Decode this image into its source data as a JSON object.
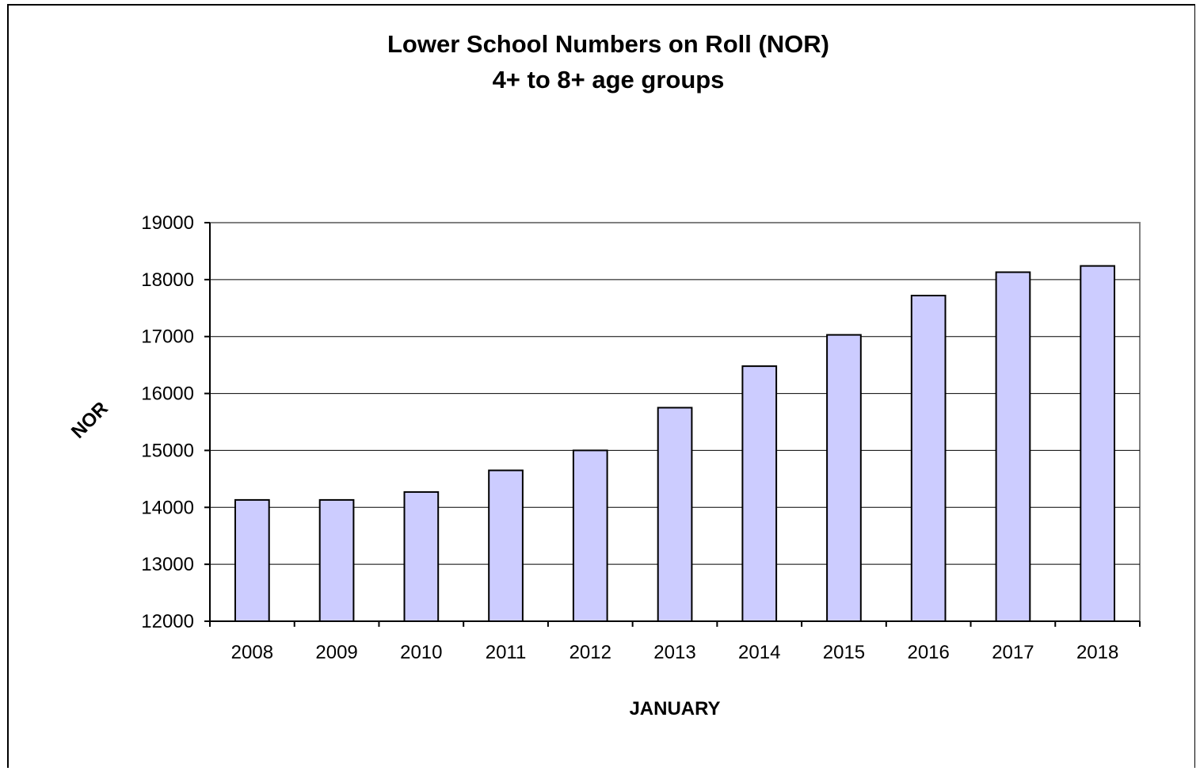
{
  "chart_data": {
    "type": "bar",
    "title": "Lower School Numbers on Roll (NOR)",
    "subtitle": "4+ to 8+ age groups",
    "xlabel": "JANUARY",
    "ylabel": "NOR",
    "categories": [
      "2008",
      "2009",
      "2010",
      "2011",
      "2012",
      "2013",
      "2014",
      "2015",
      "2016",
      "2017",
      "2018"
    ],
    "values": [
      14130,
      14130,
      14270,
      14650,
      15000,
      15750,
      16480,
      17030,
      17720,
      18130,
      18240
    ],
    "ylim": [
      12000,
      19000
    ],
    "yticks": [
      12000,
      13000,
      14000,
      15000,
      16000,
      17000,
      18000,
      19000
    ],
    "grid": true,
    "legend": "none",
    "colors": {
      "bar_fill": "#ccccff",
      "bar_stroke": "#000000",
      "grid": "#000000",
      "plot_border": "#808080"
    }
  }
}
